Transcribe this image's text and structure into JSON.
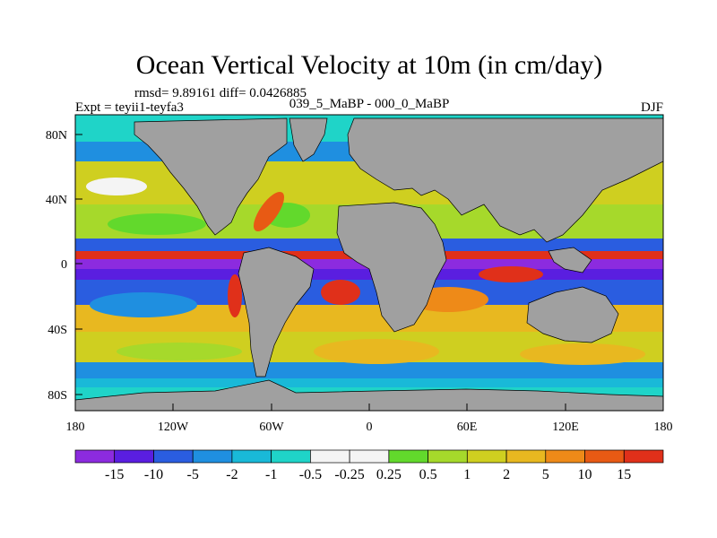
{
  "title": "Ocean Vertical Velocity at 10m (in cm/day)",
  "stats": "rmsd= 9.89161 diff= 0.0426885",
  "left_label": "Expt = teyii1-teyfa3",
  "center_label": "039_5_MaBP - 000_0_MaBP",
  "right_label": "DJF",
  "lat_ticks": [
    "80N",
    "40N",
    "0",
    "40S",
    "80S"
  ],
  "lon_ticks": [
    "180",
    "120W",
    "60W",
    "0",
    "60E",
    "120E",
    "180"
  ],
  "colorbar": {
    "labels": [
      "-15",
      "-10",
      "-5",
      "-2",
      "-1",
      "-0.5",
      "-0.25",
      "0.25",
      "0.5",
      "1",
      "2",
      "5",
      "10",
      "15"
    ],
    "colors": [
      "#8c2bdf",
      "#5a1ee0",
      "#2a5de0",
      "#1f8fe0",
      "#19b9d8",
      "#1fd4c8",
      "#f4f4f4",
      "#62d92c",
      "#a6d92b",
      "#cfcf20",
      "#e8b820",
      "#ee8a18",
      "#e85a14",
      "#e0301a"
    ]
  },
  "colors": {
    "land": "#a0a0a0",
    "coast": "#000000"
  }
}
